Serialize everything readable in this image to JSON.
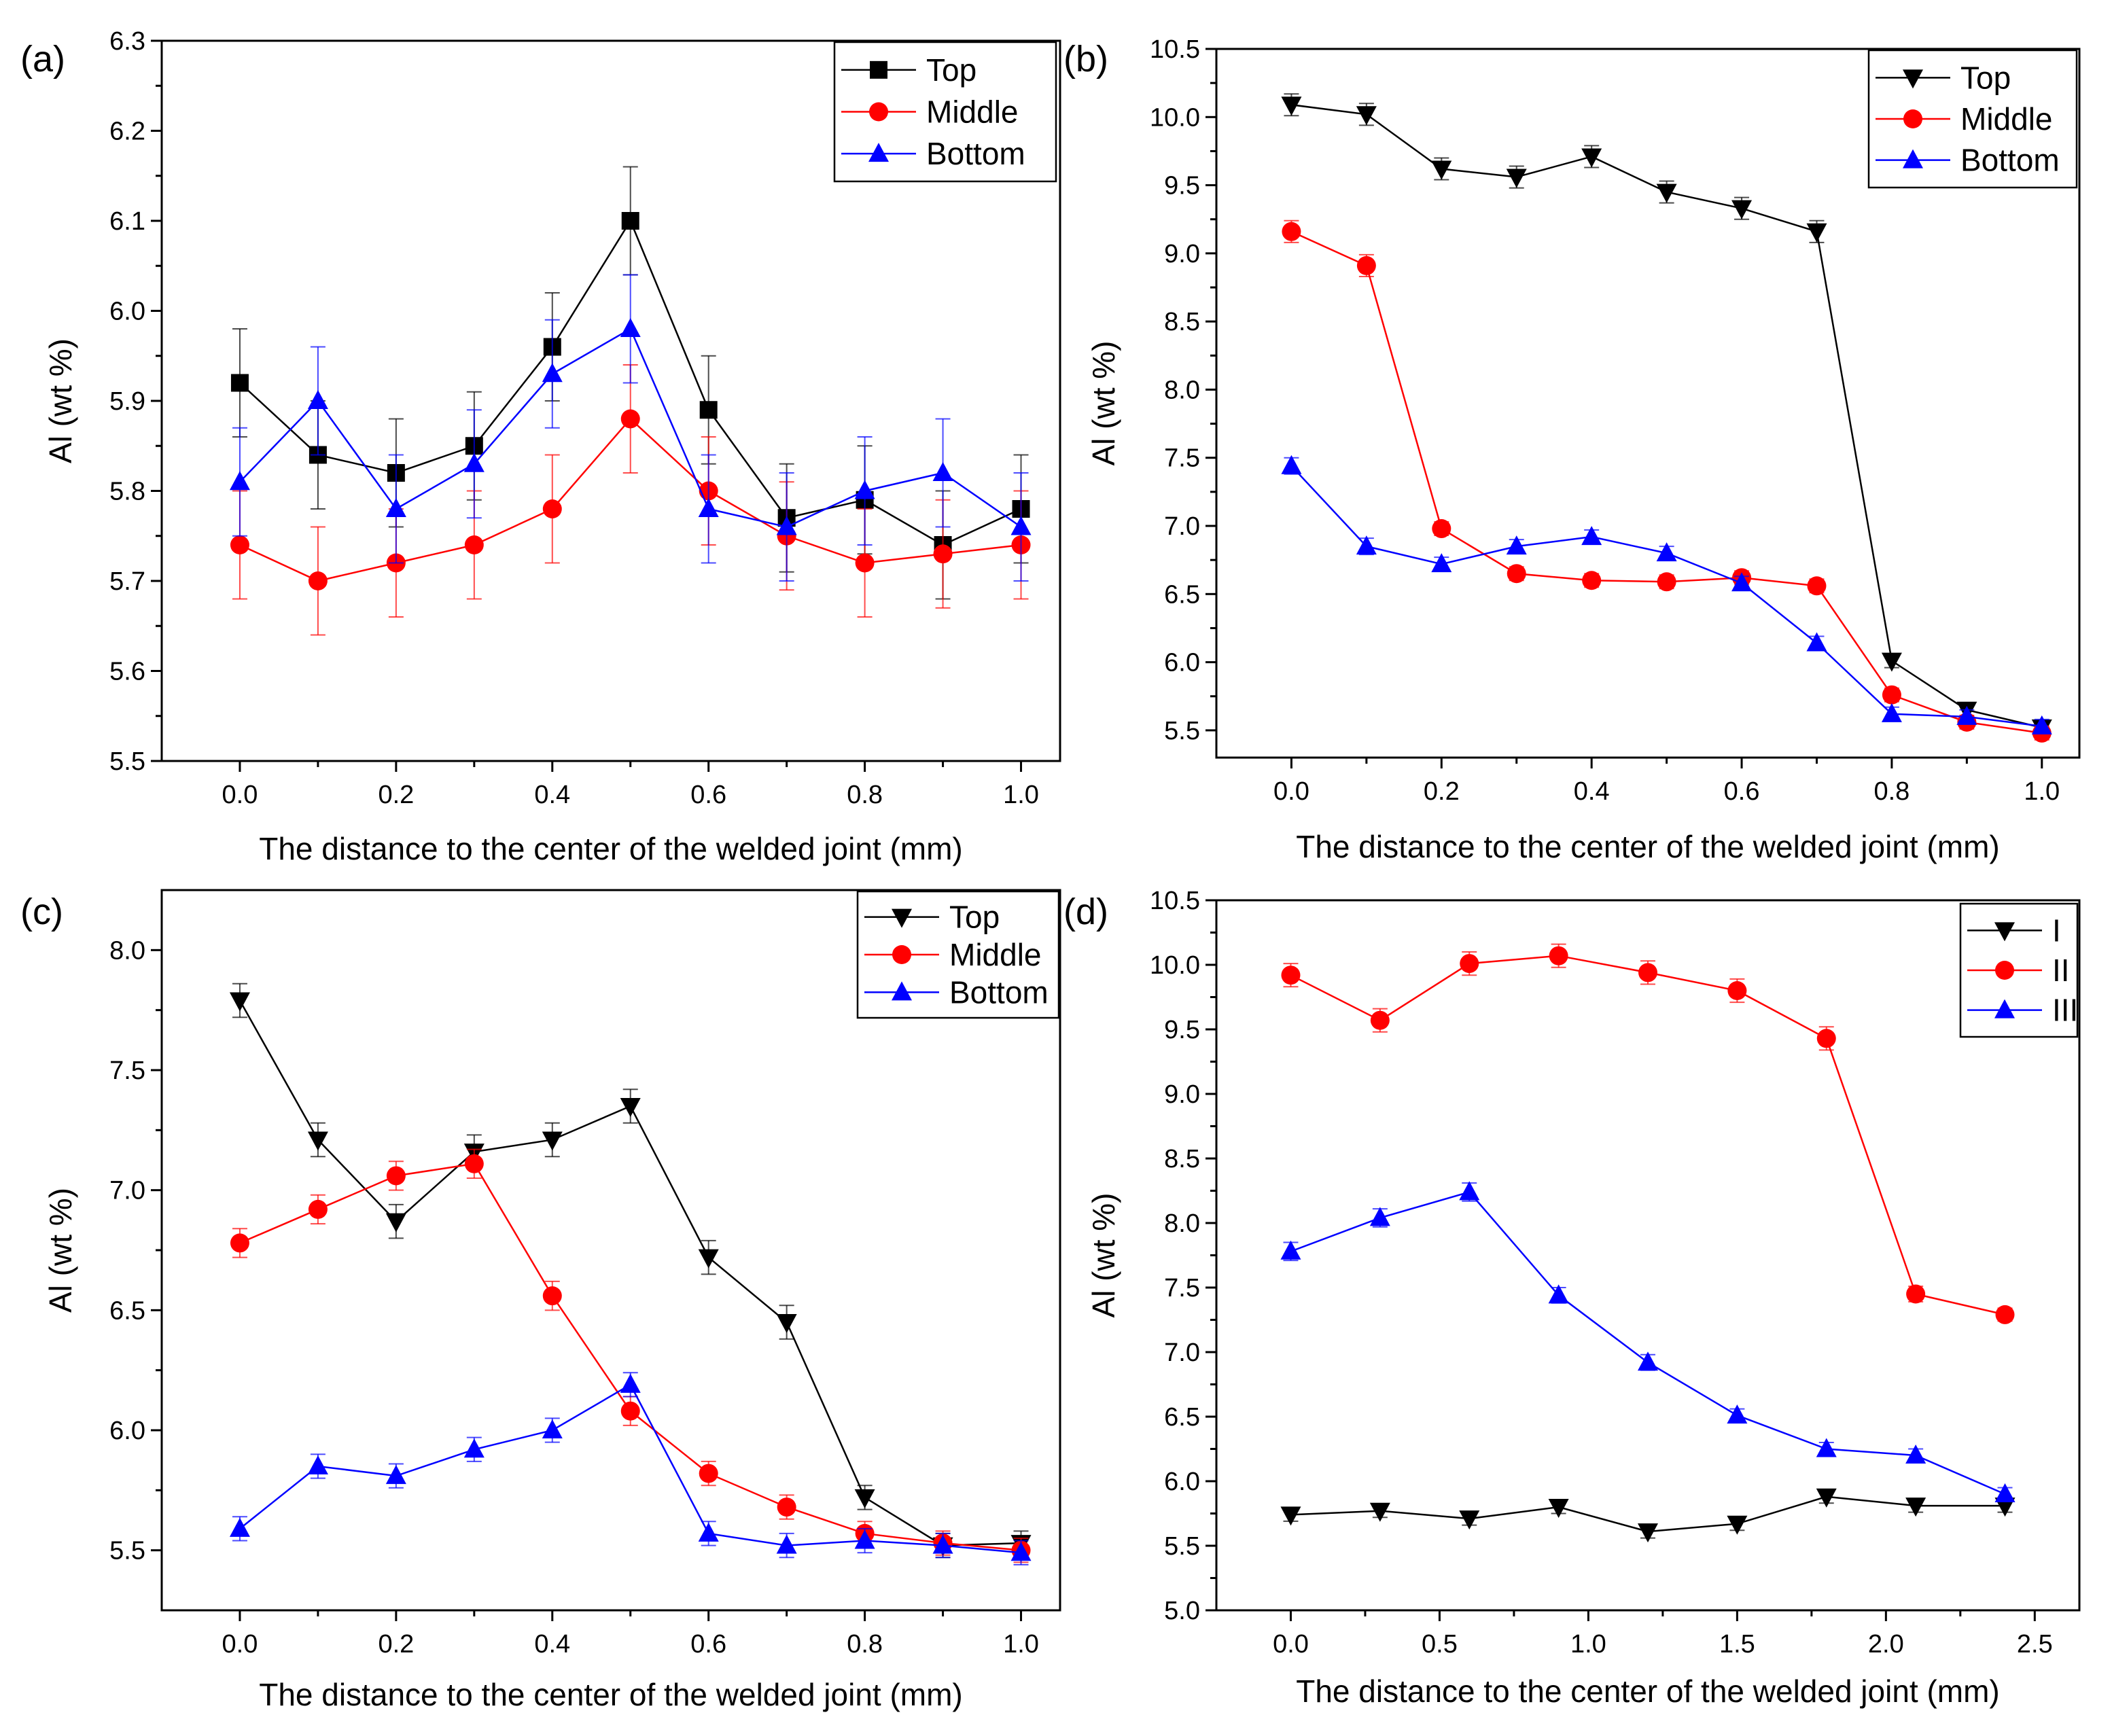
{
  "chart_data": [
    {
      "type": "line",
      "panel_label": "(a)",
      "xlabel": "The distance to the center of the welded joint (mm)",
      "ylabel": "Al (wt %)",
      "xlim": [
        -0.1,
        1.05
      ],
      "ylim": [
        5.5,
        6.3
      ],
      "xticks": [
        0.0,
        0.2,
        0.4,
        0.6,
        0.8,
        1.0
      ],
      "yticks": [
        5.5,
        5.6,
        5.7,
        5.8,
        5.9,
        6.0,
        6.1,
        6.2,
        6.3
      ],
      "xtick_labels": [
        "0.0",
        "0.2",
        "0.4",
        "0.6",
        "0.8",
        "1.0"
      ],
      "ytick_labels": [
        "5.5",
        "5.6",
        "5.7",
        "5.8",
        "5.9",
        "6.0",
        "6.1",
        "6.2",
        "6.3"
      ],
      "legend_position": "top-right",
      "series": [
        {
          "name": "Top",
          "color": "#000000",
          "marker": "square",
          "x": [
            0.0,
            0.1,
            0.2,
            0.3,
            0.4,
            0.5,
            0.6,
            0.7,
            0.8,
            0.9,
            1.0
          ],
          "values": [
            5.92,
            5.84,
            5.82,
            5.85,
            5.96,
            6.1,
            5.89,
            5.77,
            5.79,
            5.74,
            5.78
          ],
          "errors": [
            0.06,
            0.06,
            0.06,
            0.06,
            0.06,
            0.06,
            0.06,
            0.06,
            0.06,
            0.06,
            0.06
          ]
        },
        {
          "name": "Middle",
          "color": "#ff0000",
          "marker": "circle",
          "x": [
            0.0,
            0.1,
            0.2,
            0.3,
            0.4,
            0.5,
            0.6,
            0.7,
            0.8,
            0.9,
            1.0
          ],
          "values": [
            5.74,
            5.7,
            5.72,
            5.74,
            5.78,
            5.88,
            5.8,
            5.75,
            5.72,
            5.73,
            5.74
          ],
          "errors": [
            0.06,
            0.06,
            0.06,
            0.06,
            0.06,
            0.06,
            0.06,
            0.06,
            0.06,
            0.06,
            0.06
          ]
        },
        {
          "name": "Bottom",
          "color": "#0000ff",
          "marker": "triangle-up",
          "x": [
            0.0,
            0.1,
            0.2,
            0.3,
            0.4,
            0.5,
            0.6,
            0.7,
            0.8,
            0.9,
            1.0
          ],
          "values": [
            5.81,
            5.9,
            5.78,
            5.83,
            5.93,
            5.98,
            5.78,
            5.76,
            5.8,
            5.82,
            5.76
          ],
          "errors": [
            0.06,
            0.06,
            0.06,
            0.06,
            0.06,
            0.06,
            0.06,
            0.06,
            0.06,
            0.06,
            0.06
          ]
        }
      ]
    },
    {
      "type": "line",
      "panel_label": "(b)",
      "xlabel": "The distance to the center of the welded joint (mm)",
      "ylabel": "Al (wt %)",
      "xlim": [
        -0.1,
        1.05
      ],
      "ylim": [
        5.3,
        10.5
      ],
      "xticks": [
        0.0,
        0.2,
        0.4,
        0.6,
        0.8,
        1.0
      ],
      "yticks": [
        5.5,
        6.0,
        6.5,
        7.0,
        7.5,
        8.0,
        8.5,
        9.0,
        9.5,
        10.0,
        10.5
      ],
      "xtick_labels": [
        "0.0",
        "0.2",
        "0.4",
        "0.6",
        "0.8",
        "1.0"
      ],
      "ytick_labels": [
        "5.5",
        "6.0",
        "6.5",
        "7.0",
        "7.5",
        "8.0",
        "8.5",
        "9.0",
        "9.5",
        "10.0",
        "10.5"
      ],
      "legend_position": "top-right",
      "series": [
        {
          "name": "Top",
          "color": "#000000",
          "marker": "triangle-down",
          "x": [
            0.0,
            0.1,
            0.2,
            0.3,
            0.4,
            0.5,
            0.6,
            0.7,
            0.8,
            0.9,
            1.0
          ],
          "values": [
            10.09,
            10.02,
            9.62,
            9.56,
            9.71,
            9.45,
            9.33,
            9.16,
            6.01,
            5.65,
            5.52
          ],
          "errors": [
            0.08,
            0.08,
            0.08,
            0.08,
            0.08,
            0.08,
            0.08,
            0.08,
            0.05,
            0.05,
            0.05
          ]
        },
        {
          "name": "Middle",
          "color": "#ff0000",
          "marker": "circle",
          "x": [
            0.0,
            0.1,
            0.2,
            0.3,
            0.4,
            0.5,
            0.6,
            0.7,
            0.8,
            0.9,
            1.0
          ],
          "values": [
            9.16,
            8.91,
            6.98,
            6.65,
            6.6,
            6.59,
            6.62,
            6.56,
            5.76,
            5.56,
            5.48
          ],
          "errors": [
            0.08,
            0.08,
            0.05,
            0.05,
            0.05,
            0.05,
            0.05,
            0.05,
            0.05,
            0.05,
            0.05
          ]
        },
        {
          "name": "Bottom",
          "color": "#0000ff",
          "marker": "triangle-up",
          "x": [
            0.0,
            0.1,
            0.2,
            0.3,
            0.4,
            0.5,
            0.6,
            0.7,
            0.8,
            0.9,
            1.0
          ],
          "values": [
            7.44,
            6.85,
            6.72,
            6.85,
            6.92,
            6.8,
            6.58,
            6.14,
            5.62,
            5.6,
            5.53
          ],
          "errors": [
            0.06,
            0.06,
            0.05,
            0.05,
            0.05,
            0.05,
            0.05,
            0.05,
            0.05,
            0.05,
            0.05
          ]
        }
      ]
    },
    {
      "type": "line",
      "panel_label": "(c)",
      "xlabel": "The distance to the center of the welded joint (mm)",
      "ylabel": "Al (wt %)",
      "xlim": [
        -0.1,
        1.05
      ],
      "ylim": [
        5.25,
        8.25
      ],
      "xticks": [
        0.0,
        0.2,
        0.4,
        0.6,
        0.8,
        1.0
      ],
      "yticks": [
        5.5,
        6.0,
        6.5,
        7.0,
        7.5,
        8.0
      ],
      "xtick_labels": [
        "0.0",
        "0.2",
        "0.4",
        "0.6",
        "0.8",
        "1.0"
      ],
      "ytick_labels": [
        "5.5",
        "6.0",
        "6.5",
        "7.0",
        "7.5",
        "8.0"
      ],
      "legend_position": "top-right",
      "series": [
        {
          "name": "Top",
          "color": "#000000",
          "marker": "triangle-down",
          "x": [
            0.0,
            0.1,
            0.2,
            0.3,
            0.4,
            0.5,
            0.6,
            0.7,
            0.8,
            0.9,
            1.0
          ],
          "values": [
            7.79,
            7.21,
            6.87,
            7.16,
            7.21,
            7.35,
            6.72,
            6.45,
            5.72,
            5.52,
            5.53
          ],
          "errors": [
            0.07,
            0.07,
            0.07,
            0.07,
            0.07,
            0.07,
            0.07,
            0.07,
            0.05,
            0.05,
            0.05
          ]
        },
        {
          "name": "Middle",
          "color": "#ff0000",
          "marker": "circle",
          "x": [
            0.0,
            0.1,
            0.2,
            0.3,
            0.4,
            0.5,
            0.6,
            0.7,
            0.8,
            0.9,
            1.0
          ],
          "values": [
            6.78,
            6.92,
            7.06,
            7.11,
            6.56,
            6.08,
            5.82,
            5.68,
            5.57,
            5.53,
            5.5
          ],
          "errors": [
            0.06,
            0.06,
            0.06,
            0.06,
            0.06,
            0.06,
            0.05,
            0.05,
            0.05,
            0.05,
            0.05
          ]
        },
        {
          "name": "Bottom",
          "color": "#0000ff",
          "marker": "triangle-up",
          "x": [
            0.0,
            0.1,
            0.2,
            0.3,
            0.4,
            0.5,
            0.6,
            0.7,
            0.8,
            0.9,
            1.0
          ],
          "values": [
            5.59,
            5.85,
            5.81,
            5.92,
            6.0,
            6.19,
            5.57,
            5.52,
            5.54,
            5.52,
            5.49
          ],
          "errors": [
            0.05,
            0.05,
            0.05,
            0.05,
            0.05,
            0.05,
            0.05,
            0.05,
            0.05,
            0.05,
            0.05
          ]
        }
      ]
    },
    {
      "type": "line",
      "panel_label": "(d)",
      "xlabel": "The distance to the center of the welded joint (mm)",
      "ylabel": "Al (wt %)",
      "xlim": [
        -0.25,
        2.65
      ],
      "ylim": [
        5.0,
        10.5
      ],
      "xticks": [
        0.0,
        0.5,
        1.0,
        1.5,
        2.0,
        2.5
      ],
      "yticks": [
        5.0,
        5.5,
        6.0,
        6.5,
        7.0,
        7.5,
        8.0,
        8.5,
        9.0,
        9.5,
        10.0,
        10.5
      ],
      "xtick_labels": [
        "0.0",
        "0.5",
        "1.0",
        "1.5",
        "2.0",
        "2.5"
      ],
      "ytick_labels": [
        "5.0",
        "5.5",
        "6.0",
        "6.5",
        "7.0",
        "7.5",
        "8.0",
        "8.5",
        "9.0",
        "9.5",
        "10.0",
        "10.5"
      ],
      "legend_position": "top-right",
      "series": [
        {
          "name": "I",
          "color": "#000000",
          "marker": "triangle-down",
          "x": [
            0.0,
            0.3,
            0.6,
            0.9,
            1.2,
            1.5,
            1.8,
            2.1,
            2.4
          ],
          "values": [
            5.74,
            5.77,
            5.71,
            5.8,
            5.61,
            5.67,
            5.88,
            5.81,
            5.81
          ],
          "errors": [
            0.05,
            0.05,
            0.05,
            0.05,
            0.05,
            0.05,
            0.05,
            0.05,
            0.05
          ]
        },
        {
          "name": "II",
          "color": "#ff0000",
          "marker": "circle",
          "x": [
            0.0,
            0.3,
            0.6,
            0.9,
            1.2,
            1.5,
            1.8,
            2.1,
            2.4
          ],
          "values": [
            9.92,
            9.57,
            10.01,
            10.07,
            9.94,
            9.8,
            9.43,
            7.45,
            7.29
          ],
          "errors": [
            0.09,
            0.09,
            0.09,
            0.09,
            0.09,
            0.09,
            0.09,
            0.06,
            0.05
          ]
        },
        {
          "name": "III",
          "color": "#0000ff",
          "marker": "triangle-up",
          "x": [
            0.0,
            0.3,
            0.6,
            0.9,
            1.2,
            1.5,
            1.8,
            2.1,
            2.4
          ],
          "values": [
            7.78,
            8.04,
            8.24,
            7.44,
            6.92,
            6.51,
            6.25,
            6.2,
            5.9
          ],
          "errors": [
            0.07,
            0.07,
            0.07,
            0.06,
            0.06,
            0.05,
            0.05,
            0.05,
            0.05
          ]
        }
      ]
    }
  ]
}
